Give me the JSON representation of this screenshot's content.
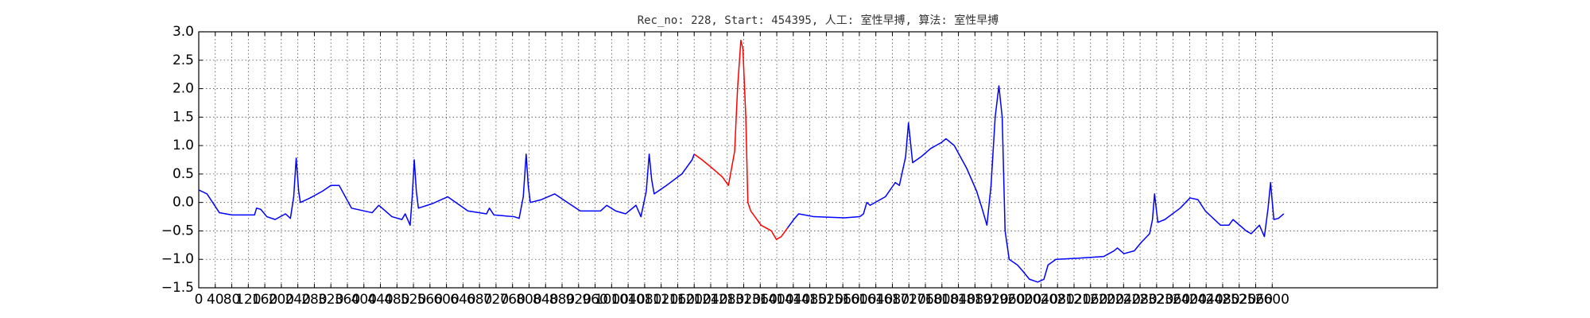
{
  "chart_data": {
    "type": "line",
    "title": "Rec_no: 228, Start: 454395, 人工: 室性早搏, 算法: 室性早搏",
    "xlim": [
      0,
      3000
    ],
    "ylim": [
      -1.5,
      3.0
    ],
    "grid": true,
    "xticks": [
      0,
      40,
      80,
      120,
      160,
      200,
      240,
      280,
      320,
      360,
      400,
      440,
      480,
      520,
      560,
      600,
      640,
      680,
      720,
      760,
      800,
      840,
      880,
      920,
      960,
      1000,
      1040,
      1080,
      1120,
      1160,
      1200,
      1240,
      1280,
      1320,
      1360,
      1400,
      1440,
      1480,
      1520,
      1560,
      1600,
      1640,
      1680,
      1720,
      1760,
      1800,
      1840,
      1880,
      1920,
      1960,
      2000,
      2040,
      2080,
      2120,
      2160,
      2200,
      2240,
      2280,
      2320,
      2360,
      2400,
      2440,
      2480,
      2520,
      2560,
      2600
    ],
    "yticks": [
      {
        "value": -1.5,
        "label": "−1.5"
      },
      {
        "value": -1.0,
        "label": "−1.0"
      },
      {
        "value": -0.5,
        "label": "−0.5"
      },
      {
        "value": 0,
        "label": "0.0"
      },
      0.5,
      {
        "value": 1,
        "label": "1.0"
      },
      1.5,
      {
        "value": 2,
        "label": "2.0"
      },
      2.5,
      {
        "value": 3,
        "label": "3.0"
      }
    ],
    "series": [
      {
        "color": "#0000ff",
        "x": [
          0,
          20,
          50,
          80,
          135,
          140,
          150,
          165,
          185,
          210,
          222,
          230,
          236,
          242,
          246,
          270,
          300,
          320,
          340,
          370,
          420,
          436,
          468,
          492,
          500,
          512,
          517,
          522,
          527,
          532,
          566,
          603,
          652,
          697,
          704,
          715,
          764,
          776,
          786,
          793,
          798,
          803,
          830,
          862,
          924,
          973,
          988,
          1010,
          1034,
          1059,
          1071,
          1084,
          1091,
          1097,
          1103,
          1133,
          1170,
          1195,
          1200,
          1300,
          1426,
          1441,
          1453,
          1490,
          1564,
          1601,
          1610,
          1618,
          1626,
          1663,
          1687,
          1697,
          1712,
          1719,
          1729,
          1749,
          1773,
          1798,
          1810,
          1830,
          1860,
          1884,
          1897,
          1909,
          1919,
          1929,
          1938,
          1946,
          1953,
          1963,
          1983,
          1995,
          2012,
          2032,
          2047,
          2057,
          2076,
          2131,
          2192,
          2217,
          2225,
          2241,
          2266,
          2283,
          2303,
          2310,
          2315,
          2323,
          2340,
          2377,
          2401,
          2420,
          2438,
          2475,
          2495,
          2505,
          2537,
          2549,
          2569,
          2581,
          2590,
          2596,
          2604,
          2615,
          2628
        ],
        "values": [
          0.22,
          0.15,
          -0.18,
          -0.22,
          -0.22,
          -0.1,
          -0.12,
          -0.25,
          -0.3,
          -0.2,
          -0.28,
          0.1,
          0.78,
          0.2,
          0.0,
          0.08,
          0.2,
          0.3,
          0.3,
          -0.1,
          -0.18,
          -0.05,
          -0.25,
          -0.3,
          -0.2,
          -0.4,
          0.1,
          0.75,
          0.2,
          -0.1,
          -0.02,
          0.1,
          -0.15,
          -0.2,
          -0.1,
          -0.22,
          -0.25,
          -0.28,
          0.1,
          0.85,
          0.3,
          0.0,
          0.05,
          0.15,
          -0.15,
          -0.15,
          -0.05,
          -0.15,
          -0.2,
          -0.05,
          -0.25,
          0.2,
          0.85,
          0.4,
          0.15,
          0.3,
          0.5,
          0.75,
          0.85,
          null,
          -0.45,
          -0.3,
          -0.2,
          -0.25,
          -0.27,
          -0.25,
          -0.2,
          0.0,
          -0.05,
          0.1,
          0.35,
          0.3,
          0.8,
          1.4,
          0.7,
          0.8,
          0.95,
          1.05,
          1.12,
          1.0,
          0.6,
          0.2,
          -0.1,
          -0.4,
          0.3,
          1.5,
          2.05,
          1.5,
          -0.5,
          -1.0,
          -1.1,
          -1.2,
          -1.35,
          -1.4,
          -1.35,
          -1.1,
          -1.0,
          -0.98,
          -0.95,
          -0.85,
          -0.8,
          -0.9,
          -0.85,
          -0.7,
          -0.55,
          -0.3,
          0.15,
          -0.35,
          -0.3,
          -0.1,
          0.08,
          0.05,
          -0.15,
          -0.4,
          -0.4,
          -0.3,
          -0.5,
          -0.55,
          -0.4,
          -0.6,
          -0.1,
          0.35,
          -0.3,
          -0.28,
          -0.2
        ]
      },
      {
        "color": "#ff0000",
        "x": [
          1200,
          1219,
          1244,
          1268,
          1283,
          1288,
          1298,
          1305,
          1313,
          1318,
          1325,
          1330,
          1337,
          1342,
          1362,
          1387,
          1399,
          1411,
          1426
        ],
        "values": [
          0.85,
          0.75,
          0.6,
          0.45,
          0.3,
          0.5,
          0.9,
          2.0,
          2.85,
          2.7,
          1.5,
          0.0,
          -0.15,
          -0.2,
          -0.4,
          -0.5,
          -0.65,
          -0.6,
          -0.45
        ]
      }
    ]
  }
}
